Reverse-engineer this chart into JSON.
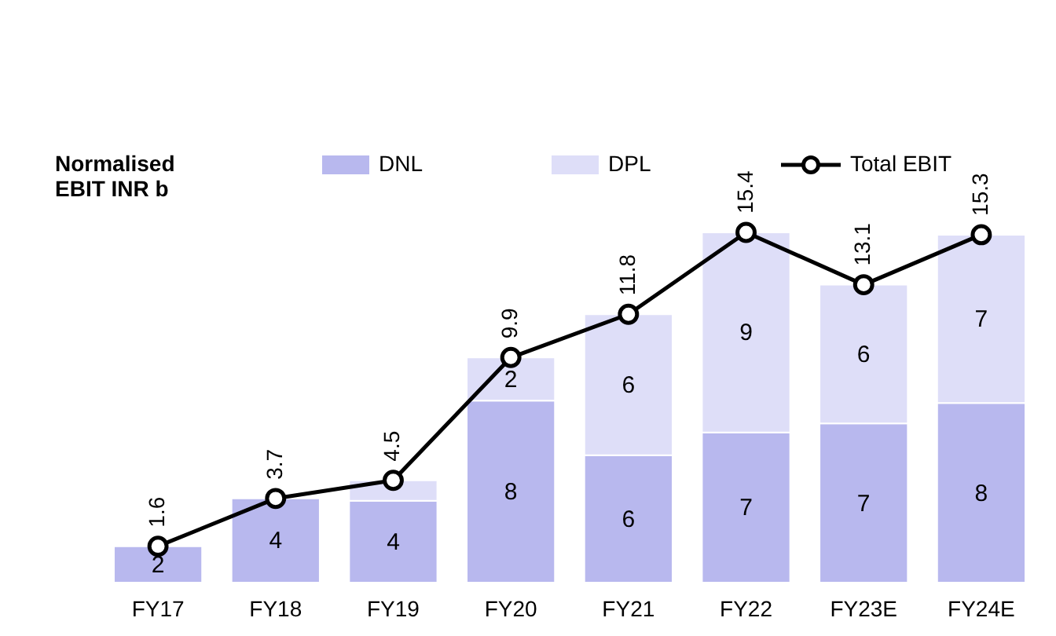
{
  "chart_data": {
    "type": "bar",
    "ylabel": "Normalised\nEBIT INR b",
    "categories": [
      "FY17",
      "FY18",
      "FY19",
      "FY20",
      "FY21",
      "FY22",
      "FY23E",
      "FY24E"
    ],
    "stacked": true,
    "tick_labels": "x",
    "legend": "top",
    "series": [
      {
        "name": "DNL",
        "color": "#b8b8ee",
        "values": [
          1.6,
          3.7,
          3.6,
          8.0,
          5.6,
          6.6,
          7.0,
          7.9
        ],
        "value_labels": [
          "2",
          "4",
          "4",
          "8",
          "6",
          "7",
          "7",
          "8"
        ]
      },
      {
        "name": "DPL",
        "color": "#dedef8",
        "values": [
          null,
          null,
          0.9,
          1.9,
          6.2,
          8.8,
          6.1,
          7.4
        ],
        "value_labels": [
          null,
          null,
          null,
          "2",
          "6",
          "9",
          "6",
          "7"
        ]
      },
      {
        "name": "Total EBIT",
        "type": "line",
        "color": "#000000",
        "marker": "circle",
        "data_labels": true,
        "values": [
          1.6,
          3.7,
          4.5,
          9.9,
          11.8,
          15.4,
          13.1,
          15.3
        ]
      }
    ]
  }
}
